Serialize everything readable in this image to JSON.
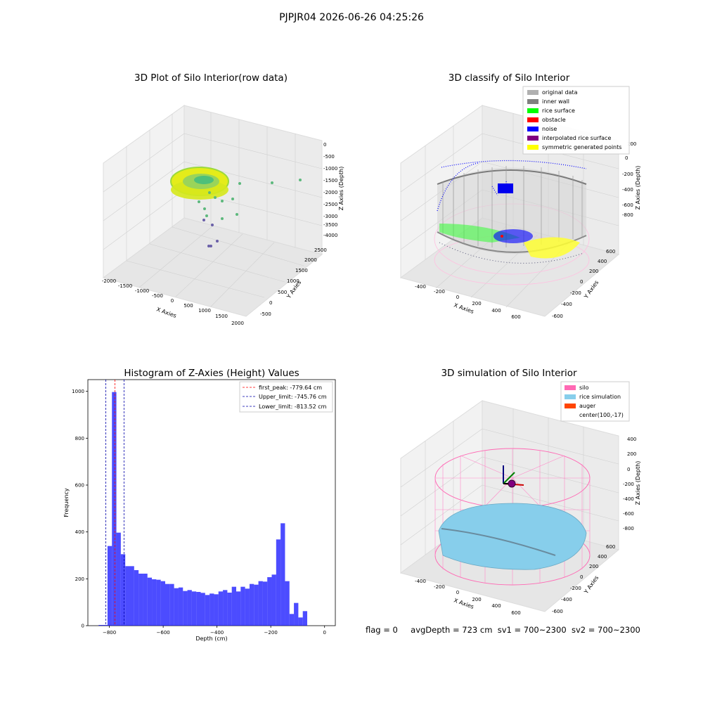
{
  "suptitle": "PJPJR04 2026-06-26 04:25:26",
  "panels": {
    "raw": {
      "title": "3D Plot of Silo Interior(row data)",
      "xlabel": "X Axies",
      "ylabel": "Y Axies",
      "zlabel": "Z Axies (Depth)",
      "xticks": [
        "-2000",
        "-1500",
        "-1000",
        "-500",
        "0",
        "500",
        "1000",
        "1500",
        "2000"
      ],
      "yticks": [
        "-500",
        "0",
        "500",
        "1000",
        "1500",
        "2000",
        "2500"
      ],
      "zticks": [
        "0",
        "-500",
        "-1000",
        "-1500",
        "-2000",
        "-2500",
        "-3000",
        "-3500",
        "-4000"
      ]
    },
    "classify": {
      "title": "3D classify of Silo Interior",
      "xlabel": "X Axies",
      "ylabel": "Y Axies",
      "zlabel": "Z Axies (Depth)",
      "xticks": [
        "-400",
        "-200",
        "0",
        "200",
        "400",
        "600"
      ],
      "yticks": [
        "-600",
        "-400",
        "-200",
        "0",
        "200",
        "400",
        "600"
      ],
      "zticks": [
        "200",
        "0",
        "-200",
        "-400",
        "-600",
        "-800"
      ],
      "legend": [
        {
          "label": "original data",
          "color": "#b0b0b0"
        },
        {
          "label": "inner wall",
          "color": "#808080"
        },
        {
          "label": "rice surface",
          "color": "#00ff00"
        },
        {
          "label": "obstacle",
          "color": "#ff0000"
        },
        {
          "label": "noise",
          "color": "#0000ff"
        },
        {
          "label": "interpolated rice surface",
          "color": "#800080"
        },
        {
          "label": "symmetric generated points",
          "color": "#ffff00"
        }
      ]
    },
    "simulation": {
      "title": "3D simulation of Silo Interior",
      "xlabel": "X Axies",
      "ylabel": "Y Axies",
      "zlabel": "Z Axies (Depth)",
      "xticks": [
        "-400",
        "-200",
        "0",
        "200",
        "400",
        "600"
      ],
      "yticks": [
        "-600",
        "-400",
        "-200",
        "0",
        "200",
        "400",
        "600"
      ],
      "zticks": [
        "400",
        "200",
        "0",
        "-200",
        "-400",
        "-600",
        "-800"
      ],
      "legend": [
        {
          "label": "silo",
          "color": "#ff69b4"
        },
        {
          "label": "rice simulation",
          "color": "#87ceeb"
        },
        {
          "label": "auger",
          "color": "#ff4500"
        },
        {
          "label": "center(100,-17)",
          "color": "#ffffff"
        }
      ]
    }
  },
  "chart_data": {
    "type": "bar",
    "title": "Histogram of Z-Axies (Height) Values",
    "xlabel": "Depth (cm)",
    "ylabel": "Frequency",
    "xlim": [
      -880,
      40
    ],
    "ylim": [
      0,
      1050
    ],
    "xticks": [
      -800,
      -600,
      -400,
      -200,
      0
    ],
    "yticks": [
      0,
      200,
      400,
      600,
      800,
      1000
    ],
    "bar_color": "#0000ff",
    "bin_start": -840,
    "bin_width": 16.5,
    "values": [
      3,
      3,
      340,
      997,
      397,
      305,
      254,
      254,
      237,
      222,
      222,
      205,
      198,
      196,
      190,
      178,
      178,
      160,
      163,
      148,
      152,
      146,
      144,
      140,
      131,
      137,
      134,
      146,
      152,
      141,
      166,
      146,
      166,
      158,
      178,
      175,
      190,
      188,
      207,
      218,
      368,
      437,
      190,
      50,
      97,
      35,
      62
    ],
    "lines": [
      {
        "label": "first_peak: -779.64 cm",
        "value": -779.64,
        "color": "#ff0000"
      },
      {
        "label": "Upper_limit: -745.76 cm",
        "value": -745.76,
        "color": "#0000aa"
      },
      {
        "label": "Lower_limit: -813.52 cm",
        "value": -813.52,
        "color": "#0000aa"
      }
    ]
  },
  "footer": {
    "flag": "flag = 0",
    "avg": "avgDepth = 723 cm",
    "sv1": "sv1 = 700~2300",
    "sv2": "sv2 = 700~2300"
  }
}
